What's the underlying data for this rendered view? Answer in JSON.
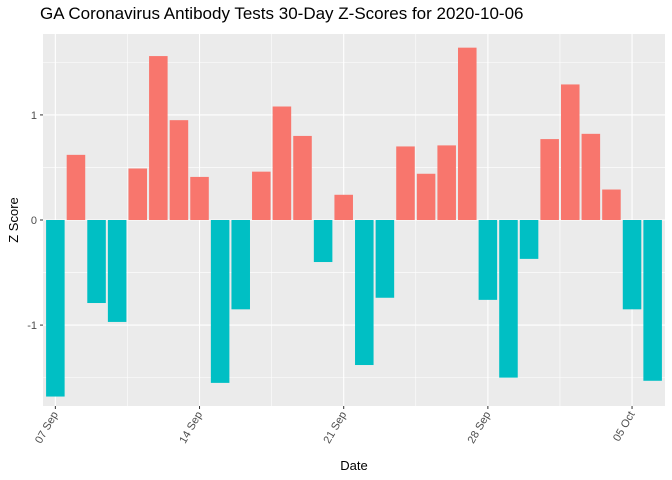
{
  "chart_data": {
    "type": "bar",
    "title": "GA Coronavirus Antibody Tests 30-Day Z-Scores for 2020-10-06",
    "xlabel": "Date",
    "ylabel": "Z Score",
    "x_ticks": [
      "07 Sep",
      "14 Sep",
      "21 Sep",
      "28 Sep",
      "05 Oct"
    ],
    "y_ticks": [
      -1,
      0,
      1
    ],
    "ylim": [
      -1.77,
      1.77
    ],
    "grid": true,
    "colors": {
      "positive": "#F8766D",
      "negative": "#00BFC4",
      "panel": "#EBEBEB",
      "grid": "#FFFFFF"
    },
    "dates": [
      "2020-09-07",
      "2020-09-08",
      "2020-09-09",
      "2020-09-10",
      "2020-09-11",
      "2020-09-12",
      "2020-09-13",
      "2020-09-14",
      "2020-09-15",
      "2020-09-16",
      "2020-09-17",
      "2020-09-18",
      "2020-09-19",
      "2020-09-20",
      "2020-09-21",
      "2020-09-22",
      "2020-09-23",
      "2020-09-24",
      "2020-09-25",
      "2020-09-26",
      "2020-09-27",
      "2020-09-28",
      "2020-09-29",
      "2020-09-30",
      "2020-10-01",
      "2020-10-02",
      "2020-10-03",
      "2020-10-04",
      "2020-10-05",
      "2020-10-06"
    ],
    "values": [
      -1.68,
      0.62,
      -0.79,
      -0.97,
      0.49,
      1.56,
      0.95,
      0.41,
      -1.55,
      -0.85,
      0.46,
      1.08,
      0.8,
      -0.4,
      0.24,
      -1.38,
      -0.74,
      0.7,
      0.44,
      0.71,
      1.64,
      -0.76,
      -1.5,
      -0.37,
      0.77,
      1.29,
      0.82,
      0.29,
      -0.85,
      -1.53
    ]
  }
}
